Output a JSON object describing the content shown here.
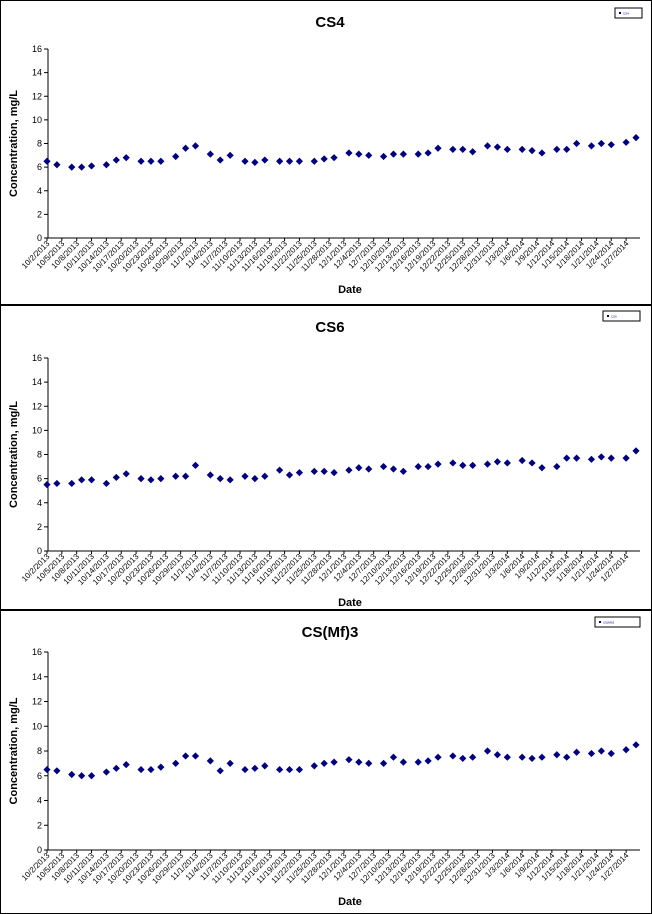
{
  "colors": {
    "marker": "#000080",
    "axis": "#000000",
    "background": "#ffffff"
  },
  "chart_data": [
    {
      "type": "scatter",
      "title": "CS4",
      "xlabel": "Date",
      "ylabel": "Concentration, mg/L",
      "ylim": [
        0,
        16
      ],
      "yticks": [
        "0",
        "2",
        "4",
        "6",
        "8",
        "10",
        "12",
        "14",
        "16"
      ],
      "grid": false,
      "legend": {
        "placement": "top-right",
        "entries": [
          "CS4"
        ]
      },
      "x_tick_labels": [
        "10/2/2013",
        "10/5/2013",
        "10/8/2013",
        "10/11/2013",
        "10/14/2013",
        "10/17/2013",
        "10/20/2013",
        "10/23/2013",
        "10/26/2013",
        "10/29/2013",
        "11/1/2013",
        "11/4/2013",
        "11/7/2013",
        "11/10/2013",
        "11/13/2013",
        "11/16/2013",
        "11/19/2013",
        "11/22/2013",
        "11/25/2013",
        "11/28/2013",
        "12/1/2013",
        "12/4/2013",
        "12/7/2013",
        "12/10/2013",
        "12/13/2013",
        "12/16/2013",
        "12/19/2013",
        "12/22/2013",
        "12/25/2013",
        "12/28/2013",
        "12/31/2013",
        "1/3/2014",
        "1/6/2014",
        "1/9/2014",
        "1/12/2014",
        "1/15/2014",
        "1/18/2014",
        "1/21/2014",
        "1/24/2014",
        "1/27/2014"
      ],
      "series": [
        {
          "name": "CS4",
          "x": [
            "10/2/2013",
            "10/4/2013",
            "10/7/2013",
            "10/9/2013",
            "10/11/2013",
            "10/14/2013",
            "10/16/2013",
            "10/18/2013",
            "10/21/2013",
            "10/23/2013",
            "10/25/2013",
            "10/28/2013",
            "10/30/2013",
            "11/1/2013",
            "11/4/2013",
            "11/6/2013",
            "11/8/2013",
            "11/11/2013",
            "11/13/2013",
            "11/15/2013",
            "11/18/2013",
            "11/20/2013",
            "11/22/2013",
            "11/25/2013",
            "11/27/2013",
            "11/29/2013",
            "12/2/2013",
            "12/4/2013",
            "12/6/2013",
            "12/9/2013",
            "12/11/2013",
            "12/13/2013",
            "12/16/2013",
            "12/18/2013",
            "12/20/2013",
            "12/23/2013",
            "12/25/2013",
            "12/27/2013",
            "12/30/2013",
            "1/1/2014",
            "1/3/2014",
            "1/6/2014",
            "1/8/2014",
            "1/10/2014",
            "1/13/2014",
            "1/15/2014",
            "1/17/2014",
            "1/20/2014",
            "1/22/2014",
            "1/24/2014",
            "1/27/2014",
            "1/29/2014"
          ],
          "y": [
            6.5,
            6.2,
            6.0,
            6.0,
            6.1,
            6.2,
            6.6,
            6.8,
            6.5,
            6.5,
            6.5,
            6.9,
            7.6,
            7.8,
            7.1,
            6.6,
            7.0,
            6.5,
            6.4,
            6.6,
            6.5,
            6.5,
            6.5,
            6.5,
            6.7,
            6.8,
            7.2,
            7.1,
            7.0,
            6.9,
            7.1,
            7.1,
            7.1,
            7.2,
            7.6,
            7.5,
            7.5,
            7.3,
            7.8,
            7.7,
            7.5,
            7.5,
            7.4,
            7.2,
            7.5,
            7.5,
            8.0,
            7.8,
            8.0,
            7.9,
            8.1,
            8.5
          ]
        }
      ]
    },
    {
      "type": "scatter",
      "title": "CS6",
      "xlabel": "Date",
      "ylabel": "Concentration, mg/L",
      "ylim": [
        0,
        16
      ],
      "yticks": [
        "0",
        "2",
        "4",
        "6",
        "8",
        "10",
        "12",
        "14",
        "16"
      ],
      "grid": false,
      "legend": {
        "placement": "top-right",
        "entries": [
          "CS6"
        ]
      },
      "x_tick_labels": [
        "10/2/2013",
        "10/5/2013",
        "10/8/2013",
        "10/11/2013",
        "10/14/2013",
        "10/17/2013",
        "10/20/2013",
        "10/23/2013",
        "10/26/2013",
        "10/29/2013",
        "11/1/2013",
        "11/4/2013",
        "11/7/2013",
        "11/10/2013",
        "11/13/2013",
        "11/16/2013",
        "11/19/2013",
        "11/22/2013",
        "11/25/2013",
        "11/28/2013",
        "12/1/2013",
        "12/4/2013",
        "12/7/2013",
        "12/10/2013",
        "12/13/2013",
        "12/16/2013",
        "12/19/2013",
        "12/22/2013",
        "12/25/2013",
        "12/28/2013",
        "12/31/2013",
        "1/3/2014",
        "1/6/2014",
        "1/9/2014",
        "1/12/2014",
        "1/15/2014",
        "1/18/2014",
        "1/21/2014",
        "1/24/2014",
        "1/27/2014"
      ],
      "series": [
        {
          "name": "CS6",
          "x": [
            "10/2/2013",
            "10/4/2013",
            "10/7/2013",
            "10/9/2013",
            "10/11/2013",
            "10/14/2013",
            "10/16/2013",
            "10/18/2013",
            "10/21/2013",
            "10/23/2013",
            "10/25/2013",
            "10/28/2013",
            "10/30/2013",
            "11/1/2013",
            "11/4/2013",
            "11/6/2013",
            "11/8/2013",
            "11/11/2013",
            "11/13/2013",
            "11/15/2013",
            "11/18/2013",
            "11/20/2013",
            "11/22/2013",
            "11/25/2013",
            "11/27/2013",
            "11/29/2013",
            "12/2/2013",
            "12/4/2013",
            "12/6/2013",
            "12/9/2013",
            "12/11/2013",
            "12/13/2013",
            "12/16/2013",
            "12/18/2013",
            "12/20/2013",
            "12/23/2013",
            "12/25/2013",
            "12/27/2013",
            "12/30/2013",
            "1/1/2014",
            "1/3/2014",
            "1/6/2014",
            "1/8/2014",
            "1/10/2014",
            "1/13/2014",
            "1/15/2014",
            "1/17/2014",
            "1/20/2014",
            "1/22/2014",
            "1/24/2014",
            "1/27/2014",
            "1/29/2014"
          ],
          "y": [
            5.5,
            5.6,
            5.6,
            5.9,
            5.9,
            5.6,
            6.1,
            6.4,
            6.0,
            5.9,
            6.0,
            6.2,
            6.2,
            7.1,
            6.3,
            6.0,
            5.9,
            6.2,
            6.0,
            6.2,
            6.7,
            6.3,
            6.5,
            6.6,
            6.6,
            6.5,
            6.7,
            6.9,
            6.8,
            7.0,
            6.8,
            6.6,
            7.0,
            7.0,
            7.2,
            7.3,
            7.1,
            7.1,
            7.2,
            7.4,
            7.3,
            7.5,
            7.3,
            6.9,
            7.0,
            7.7,
            7.7,
            7.6,
            7.8,
            7.7,
            7.7,
            8.3
          ]
        }
      ]
    },
    {
      "type": "scatter",
      "title": "CS(Mf)3",
      "xlabel": "Date",
      "ylabel": "Concentration, mg/L",
      "ylim": [
        0,
        16
      ],
      "yticks": [
        "0",
        "2",
        "4",
        "6",
        "8",
        "10",
        "12",
        "14",
        "16"
      ],
      "grid": false,
      "legend": {
        "placement": "top-right",
        "entries": [
          "CS(Mf)3"
        ]
      },
      "x_tick_labels": [
        "10/2/2013",
        "10/5/2013",
        "10/8/2013",
        "10/11/2013",
        "10/14/2013",
        "10/17/2013",
        "10/20/2013",
        "10/23/2013",
        "10/26/2013",
        "10/29/2013",
        "11/1/2013",
        "11/4/2013",
        "11/7/2013",
        "11/10/2013",
        "11/13/2013",
        "11/16/2013",
        "11/19/2013",
        "11/22/2013",
        "11/25/2013",
        "11/28/2013",
        "12/1/2013",
        "12/4/2013",
        "12/7/2013",
        "12/10/2013",
        "12/13/2013",
        "12/16/2013",
        "12/19/2013",
        "12/22/2013",
        "12/25/2013",
        "12/28/2013",
        "12/31/2013",
        "1/3/2014",
        "1/6/2014",
        "1/9/2014",
        "1/12/2014",
        "1/15/2014",
        "1/18/2014",
        "1/21/2014",
        "1/24/2014",
        "1/27/2014"
      ],
      "series": [
        {
          "name": "CS(Mf)3",
          "x": [
            "10/2/2013",
            "10/4/2013",
            "10/7/2013",
            "10/9/2013",
            "10/11/2013",
            "10/14/2013",
            "10/16/2013",
            "10/18/2013",
            "10/21/2013",
            "10/23/2013",
            "10/25/2013",
            "10/28/2013",
            "10/30/2013",
            "11/1/2013",
            "11/4/2013",
            "11/6/2013",
            "11/8/2013",
            "11/11/2013",
            "11/13/2013",
            "11/15/2013",
            "11/18/2013",
            "11/20/2013",
            "11/22/2013",
            "11/25/2013",
            "11/27/2013",
            "11/29/2013",
            "12/2/2013",
            "12/4/2013",
            "12/6/2013",
            "12/9/2013",
            "12/11/2013",
            "12/13/2013",
            "12/16/2013",
            "12/18/2013",
            "12/20/2013",
            "12/23/2013",
            "12/25/2013",
            "12/27/2013",
            "12/30/2013",
            "1/1/2014",
            "1/3/2014",
            "1/6/2014",
            "1/8/2014",
            "1/10/2014",
            "1/13/2014",
            "1/15/2014",
            "1/17/2014",
            "1/20/2014",
            "1/22/2014",
            "1/24/2014",
            "1/27/2014",
            "1/29/2014"
          ],
          "y": [
            6.5,
            6.4,
            6.1,
            6.0,
            6.0,
            6.3,
            6.6,
            6.9,
            6.5,
            6.5,
            6.7,
            7.0,
            7.6,
            7.6,
            7.2,
            6.4,
            7.0,
            6.5,
            6.6,
            6.8,
            6.5,
            6.5,
            6.5,
            6.8,
            7.0,
            7.1,
            7.3,
            7.1,
            7.0,
            7.0,
            7.5,
            7.1,
            7.1,
            7.2,
            7.5,
            7.6,
            7.4,
            7.5,
            8.0,
            7.7,
            7.5,
            7.5,
            7.4,
            7.5,
            7.7,
            7.5,
            7.9,
            7.8,
            8.0,
            7.8,
            8.1,
            8.5
          ]
        }
      ]
    }
  ]
}
